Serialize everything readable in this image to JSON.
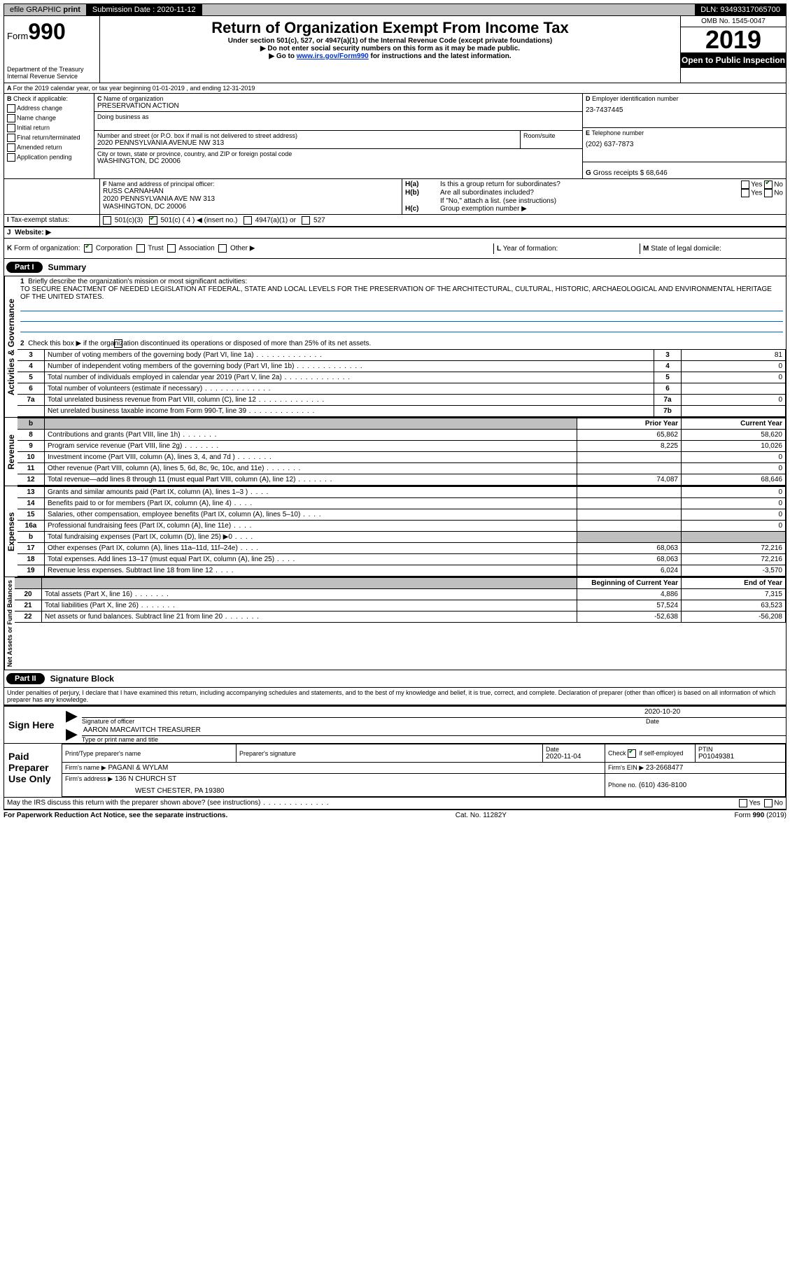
{
  "topbar": {
    "efile": "efile GRAPHIC",
    "print": "print",
    "submission_label": "Submission Date :",
    "submission_date": "2020-11-12",
    "dln_label": "DLN:",
    "dln": "93493317065700"
  },
  "header": {
    "form_word": "Form",
    "form_number": "990",
    "dept": "Department of the Treasury",
    "irs": "Internal Revenue Service",
    "title": "Return of Organization Exempt From Income Tax",
    "subtitle": "Under section 501(c), 527, or 4947(a)(1) of the Internal Revenue Code (except private foundations)",
    "note1": "Do not enter social security numbers on this form as it may be made public.",
    "note2_pre": "Go to ",
    "note2_link": "www.irs.gov/Form990",
    "note2_post": " for instructions and the latest information.",
    "omb": "OMB No. 1545-0047",
    "year": "2019",
    "open_public": "Open to Public Inspection"
  },
  "periodA": "For the 2019 calendar year, or tax year beginning 01-01-2019    , and ending 12-31-2019",
  "sectionB": {
    "label": "Check if applicable:",
    "items": [
      "Address change",
      "Name change",
      "Initial return",
      "Final return/terminated",
      "Amended return",
      "Application pending"
    ]
  },
  "sectionC": {
    "name_label": "Name of organization",
    "name": "PRESERVATION ACTION",
    "dba_label": "Doing business as",
    "dba": "",
    "addr_label": "Number and street (or P.O. box if mail is not delivered to street address)",
    "room_label": "Room/suite",
    "addr": "2020 PENNSYLVANIA AVENUE NW 313",
    "city_label": "City or town, state or province, country, and ZIP or foreign postal code",
    "city": "WASHINGTON, DC  20006"
  },
  "sectionD": {
    "label": "Employer identification number",
    "value": "23-7437445"
  },
  "sectionE": {
    "label": "Telephone number",
    "value": "(202) 637-7873"
  },
  "sectionG": {
    "label": "Gross receipts $",
    "value": "68,646"
  },
  "sectionF": {
    "label": "Name and address of principal officer:",
    "name": "RUSS CARNAHAN",
    "addr": "2020 PENNSYLVANIA AVE NW 313",
    "city": "WASHINGTON, DC  20006"
  },
  "sectionH": {
    "a": "Is this a group return for subordinates?",
    "b": "Are all subordinates included?",
    "b_note": "If \"No,\" attach a list. (see instructions)",
    "c": "Group exemption number ▶"
  },
  "tax_exempt": {
    "label": "Tax-exempt status:",
    "opts": [
      "501(c)(3)",
      "501(c) ( 4 ) ◀ (insert no.)",
      "4947(a)(1) or",
      "527"
    ]
  },
  "website_label": "Website: ▶",
  "sectionK": "Form of organization:",
  "sectionK_opts": [
    "Corporation",
    "Trust",
    "Association",
    "Other ▶"
  ],
  "sectionL": "Year of formation:",
  "sectionM": "State of legal domicile:",
  "part1": {
    "label": "Part I",
    "title": "Summary",
    "line1_label": "Briefly describe the organization's mission or most significant activities:",
    "line1_text": "TO SECURE ENACTMENT OF NEEDED LEGISLATION AT FEDERAL, STATE AND LOCAL LEVELS FOR THE PRESERVATION OF THE ARCHITECTURAL, CULTURAL, HISTORIC, ARCHAEOLOGICAL AND ENVIRONMENTAL HERITAGE OF THE UNITED STATES.",
    "line2": "Check this box ▶      if the organization discontinued its operations or disposed of more than 25% of its net assets.",
    "governance_rows": [
      {
        "n": "3",
        "t": "Number of voting members of the governing body (Part VI, line 1a)",
        "box": "3",
        "v": "81"
      },
      {
        "n": "4",
        "t": "Number of independent voting members of the governing body (Part VI, line 1b)",
        "box": "4",
        "v": "0"
      },
      {
        "n": "5",
        "t": "Total number of individuals employed in calendar year 2019 (Part V, line 2a)",
        "box": "5",
        "v": "0"
      },
      {
        "n": "6",
        "t": "Total number of volunteers (estimate if necessary)",
        "box": "6",
        "v": ""
      },
      {
        "n": "7a",
        "t": "Total unrelated business revenue from Part VIII, column (C), line 12",
        "box": "7a",
        "v": "0"
      },
      {
        "n": "",
        "t": "Net unrelated business taxable income from Form 990-T, line 39",
        "box": "7b",
        "v": ""
      }
    ],
    "col_headers": {
      "n": "b",
      "py": "Prior Year",
      "cy": "Current Year"
    },
    "revenue_rows": [
      {
        "n": "8",
        "t": "Contributions and grants (Part VIII, line 1h)",
        "py": "65,862",
        "cy": "58,620"
      },
      {
        "n": "9",
        "t": "Program service revenue (Part VIII, line 2g)",
        "py": "8,225",
        "cy": "10,026"
      },
      {
        "n": "10",
        "t": "Investment income (Part VIII, column (A), lines 3, 4, and 7d )",
        "py": "",
        "cy": "0"
      },
      {
        "n": "11",
        "t": "Other revenue (Part VIII, column (A), lines 5, 6d, 8c, 9c, 10c, and 11e)",
        "py": "",
        "cy": "0"
      },
      {
        "n": "12",
        "t": "Total revenue—add lines 8 through 11 (must equal Part VIII, column (A), line 12)",
        "py": "74,087",
        "cy": "68,646"
      }
    ],
    "expense_rows": [
      {
        "n": "13",
        "t": "Grants and similar amounts paid (Part IX, column (A), lines 1–3 )",
        "py": "",
        "cy": "0"
      },
      {
        "n": "14",
        "t": "Benefits paid to or for members (Part IX, column (A), line 4)",
        "py": "",
        "cy": "0"
      },
      {
        "n": "15",
        "t": "Salaries, other compensation, employee benefits (Part IX, column (A), lines 5–10)",
        "py": "",
        "cy": "0"
      },
      {
        "n": "16a",
        "t": "Professional fundraising fees (Part IX, column (A), line 11e)",
        "py": "",
        "cy": "0"
      },
      {
        "n": "b",
        "t": "Total fundraising expenses (Part IX, column (D), line 25) ▶0",
        "py": "grey",
        "cy": "grey"
      },
      {
        "n": "17",
        "t": "Other expenses (Part IX, column (A), lines 11a–11d, 11f–24e)",
        "py": "68,063",
        "cy": "72,216"
      },
      {
        "n": "18",
        "t": "Total expenses. Add lines 13–17 (must equal Part IX, column (A), line 25)",
        "py": "68,063",
        "cy": "72,216"
      },
      {
        "n": "19",
        "t": "Revenue less expenses. Subtract line 18 from line 12",
        "py": "6,024",
        "cy": "-3,570"
      }
    ],
    "net_headers": {
      "py": "Beginning of Current Year",
      "cy": "End of Year"
    },
    "net_rows": [
      {
        "n": "20",
        "t": "Total assets (Part X, line 16)",
        "py": "4,886",
        "cy": "7,315"
      },
      {
        "n": "21",
        "t": "Total liabilities (Part X, line 26)",
        "py": "57,524",
        "cy": "63,523"
      },
      {
        "n": "22",
        "t": "Net assets or fund balances. Subtract line 21 from line 20",
        "py": "-52,638",
        "cy": "-56,208"
      }
    ],
    "vert_labels": {
      "gov": "Activities & Governance",
      "rev": "Revenue",
      "exp": "Expenses",
      "net": "Net Assets or Fund Balances"
    }
  },
  "part2": {
    "label": "Part II",
    "title": "Signature Block",
    "declaration": "Under penalties of perjury, I declare that I have examined this return, including accompanying schedules and statements, and to the best of my knowledge and belief, it is true, correct, and complete. Declaration of preparer (other than officer) is based on all information of which preparer has any knowledge.",
    "sign_here": "Sign Here",
    "sig_of_officer": "Signature of officer",
    "date_label": "Date",
    "sig_date": "2020-10-20",
    "officer_name": "AARON MARCAVITCH  TREASURER",
    "type_name": "Type or print name and title",
    "paid": "Paid Preparer Use Only",
    "prep_name_label": "Print/Type preparer's name",
    "prep_sig_label": "Preparer's signature",
    "prep_date": "2020-11-04",
    "check_if": "Check       if self-employed",
    "ptin_label": "PTIN",
    "ptin": "P01049381",
    "firm_name_label": "Firm's name      ▶",
    "firm_name": "PAGANI & WYLAM",
    "firm_ein_label": "Firm's EIN ▶",
    "firm_ein": "23-2668477",
    "firm_addr_label": "Firm's address ▶",
    "firm_addr": "136 N CHURCH ST",
    "firm_city": "WEST CHESTER, PA  19380",
    "phone_label": "Phone no.",
    "phone": "(610) 436-8100",
    "discuss": "May the IRS discuss this return with the preparer shown above? (see instructions)"
  },
  "footer": {
    "left": "For Paperwork Reduction Act Notice, see the separate instructions.",
    "mid": "Cat. No. 11282Y",
    "right": "Form 990 (2019)"
  },
  "yn": {
    "yes": "Yes",
    "no": "No"
  }
}
